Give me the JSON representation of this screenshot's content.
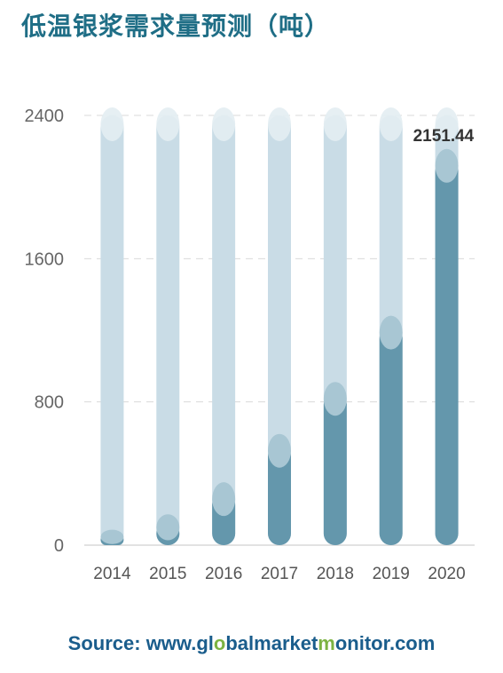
{
  "title": "低温银浆需求量预测（吨）",
  "source": {
    "prefix": "Source: www.",
    "domain_part1": "gl",
    "domain_o1": "o",
    "domain_part2": "bal",
    "domain_part3": "market",
    "domain_o2": "m",
    "domain_part4": "onitor.com"
  },
  "colors": {
    "track": "#c9dce6",
    "bar": "#6497ac",
    "cap": "#a8c6d3",
    "grid": "#d9d9d9",
    "title": "#1f6e86",
    "source": "#1a5d8c",
    "source_accent": "#7cb342"
  },
  "chart_data": {
    "type": "bar",
    "categories": [
      "2014",
      "2015",
      "2016",
      "2017",
      "2018",
      "2019",
      "2020"
    ],
    "values": [
      60,
      125,
      290,
      560,
      850,
      1220,
      2151.44
    ],
    "ylim": [
      0,
      2400
    ],
    "yticks": [
      "0",
      "800",
      "1600",
      "2400"
    ],
    "data_labels": [
      {
        "index": 6,
        "text": "2151.44"
      }
    ],
    "grid": true,
    "xlabel": "",
    "ylabel": ""
  }
}
